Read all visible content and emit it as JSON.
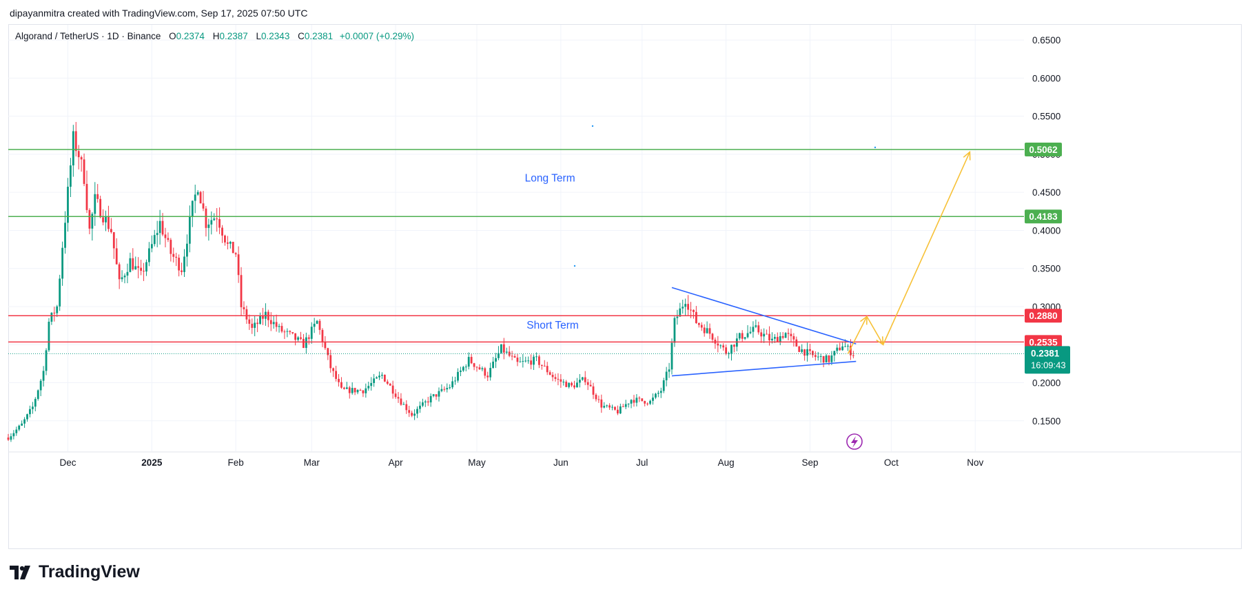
{
  "header": {
    "created_by": "dipayanmitra created with TradingView.com, Sep 17, 2025 07:50 UTC"
  },
  "legend": {
    "symbol": "Algorand / TetherUS · 1D · Binance",
    "o_label": "O",
    "o": "0.2374",
    "h_label": "H",
    "h": "0.2387",
    "l_label": "L",
    "l": "0.2343",
    "c_label": "C",
    "c": "0.2381",
    "change": "+0.0007 (+0.29%)"
  },
  "logo": {
    "text": "TradingView",
    "icon": "tradingview-logo-icon"
  },
  "colors": {
    "up": "#089981",
    "down": "#f23645",
    "support": "#4caf50",
    "resistance": "#f23645",
    "trend": "#2962ff",
    "projection": "#f7c137"
  },
  "chart_data": {
    "type": "candlestick",
    "ylim": [
      0.11,
      0.67
    ],
    "y_ticks": [
      "0.6500",
      "0.6000",
      "0.5500",
      "0.5000",
      "0.4500",
      "0.4000",
      "0.3500",
      "0.3000",
      "0.2500",
      "0.2000",
      "0.1500"
    ],
    "y_tick_values": [
      0.65,
      0.6,
      0.55,
      0.5,
      0.45,
      0.4,
      0.35,
      0.3,
      0.25,
      0.2,
      0.15
    ],
    "x_range": [
      "2024-11-09",
      "2025-11-19"
    ],
    "x_ticks": [
      {
        "label": "Dec",
        "date": "2024-12-01",
        "bold": false
      },
      {
        "label": "2025",
        "date": "2025-01-01",
        "bold": true
      },
      {
        "label": "Feb",
        "date": "2025-02-01",
        "bold": false
      },
      {
        "label": "Mar",
        "date": "2025-03-01",
        "bold": false
      },
      {
        "label": "Apr",
        "date": "2025-04-01",
        "bold": false
      },
      {
        "label": "May",
        "date": "2025-05-01",
        "bold": false
      },
      {
        "label": "Jun",
        "date": "2025-06-01",
        "bold": false
      },
      {
        "label": "Jul",
        "date": "2025-07-01",
        "bold": false
      },
      {
        "label": "Aug",
        "date": "2025-08-01",
        "bold": false
      },
      {
        "label": "Sep",
        "date": "2025-09-01",
        "bold": false
      },
      {
        "label": "Oct",
        "date": "2025-10-01",
        "bold": false
      },
      {
        "label": "Nov",
        "date": "2025-11-01",
        "bold": false
      }
    ],
    "price_path": [
      [
        "2024-11-09",
        0.128
      ],
      [
        "2024-11-14",
        0.145
      ],
      [
        "2024-11-18",
        0.168
      ],
      [
        "2024-11-22",
        0.215
      ],
      [
        "2024-11-24",
        0.28
      ],
      [
        "2024-11-27",
        0.3
      ],
      [
        "2024-11-29",
        0.38
      ],
      [
        "2024-12-01",
        0.45
      ],
      [
        "2024-12-03",
        0.52
      ],
      [
        "2024-12-05",
        0.5
      ],
      [
        "2024-12-07",
        0.47
      ],
      [
        "2024-12-09",
        0.4
      ],
      [
        "2024-12-11",
        0.44
      ],
      [
        "2024-12-14",
        0.42
      ],
      [
        "2024-12-17",
        0.4
      ],
      [
        "2024-12-20",
        0.33
      ],
      [
        "2024-12-24",
        0.36
      ],
      [
        "2024-12-28",
        0.34
      ],
      [
        "2025-01-01",
        0.38
      ],
      [
        "2025-01-04",
        0.41
      ],
      [
        "2025-01-08",
        0.37
      ],
      [
        "2025-01-12",
        0.35
      ],
      [
        "2025-01-16",
        0.43
      ],
      [
        "2025-01-18",
        0.46
      ],
      [
        "2025-01-21",
        0.41
      ],
      [
        "2025-01-25",
        0.42
      ],
      [
        "2025-01-29",
        0.38
      ],
      [
        "2025-02-01",
        0.37
      ],
      [
        "2025-02-03",
        0.3
      ],
      [
        "2025-02-07",
        0.27
      ],
      [
        "2025-02-12",
        0.29
      ],
      [
        "2025-02-17",
        0.27
      ],
      [
        "2025-02-22",
        0.26
      ],
      [
        "2025-02-26",
        0.25
      ],
      [
        "2025-03-03",
        0.28
      ],
      [
        "2025-03-08",
        0.22
      ],
      [
        "2025-03-12",
        0.19
      ],
      [
        "2025-03-20",
        0.19
      ],
      [
        "2025-03-27",
        0.21
      ],
      [
        "2025-04-03",
        0.175
      ],
      [
        "2025-04-07",
        0.158
      ],
      [
        "2025-04-14",
        0.18
      ],
      [
        "2025-04-21",
        0.195
      ],
      [
        "2025-04-28",
        0.23
      ],
      [
        "2025-05-05",
        0.21
      ],
      [
        "2025-05-10",
        0.245
      ],
      [
        "2025-05-16",
        0.225
      ],
      [
        "2025-05-23",
        0.23
      ],
      [
        "2025-05-30",
        0.205
      ],
      [
        "2025-06-05",
        0.195
      ],
      [
        "2025-06-10",
        0.205
      ],
      [
        "2025-06-16",
        0.17
      ],
      [
        "2025-06-22",
        0.162
      ],
      [
        "2025-06-27",
        0.178
      ],
      [
        "2025-07-04",
        0.175
      ],
      [
        "2025-07-08",
        0.19
      ],
      [
        "2025-07-11",
        0.22
      ],
      [
        "2025-07-13",
        0.28
      ],
      [
        "2025-07-17",
        0.31
      ],
      [
        "2025-07-21",
        0.28
      ],
      [
        "2025-07-26",
        0.265
      ],
      [
        "2025-08-01",
        0.24
      ],
      [
        "2025-08-06",
        0.26
      ],
      [
        "2025-08-12",
        0.27
      ],
      [
        "2025-08-18",
        0.255
      ],
      [
        "2025-08-23",
        0.265
      ],
      [
        "2025-08-28",
        0.245
      ],
      [
        "2025-09-02",
        0.235
      ],
      [
        "2025-09-08",
        0.23
      ],
      [
        "2025-09-13",
        0.25
      ],
      [
        "2025-09-17",
        0.238
      ]
    ],
    "horizontal_levels": [
      {
        "value": 0.5062,
        "label": "0.5062",
        "color": "#4caf50"
      },
      {
        "value": 0.4183,
        "label": "0.4183",
        "color": "#4caf50"
      },
      {
        "value": 0.288,
        "label": "0.2880",
        "color": "#f23645"
      },
      {
        "value": 0.2535,
        "label": "0.2535",
        "color": "#f23645"
      }
    ],
    "current_price": {
      "value": 0.2381,
      "label": "0.2381",
      "countdown": "16:09:43"
    },
    "trendlines": [
      {
        "from": [
          "2025-07-12",
          0.325
        ],
        "to": [
          "2025-09-18",
          0.251
        ]
      },
      {
        "from": [
          "2025-07-12",
          0.209
        ],
        "to": [
          "2025-09-18",
          0.228
        ]
      }
    ],
    "projection_path": [
      [
        "2025-09-15",
        0.238
      ],
      [
        "2025-09-22",
        0.287
      ],
      [
        "2025-09-28",
        0.25
      ],
      [
        "2025-10-30",
        0.503
      ]
    ],
    "annotations": [
      {
        "text": "Long Term",
        "at": [
          "2025-05-28",
          0.464
        ]
      },
      {
        "text": "Short Term",
        "at": [
          "2025-05-29",
          0.271
        ]
      }
    ]
  }
}
